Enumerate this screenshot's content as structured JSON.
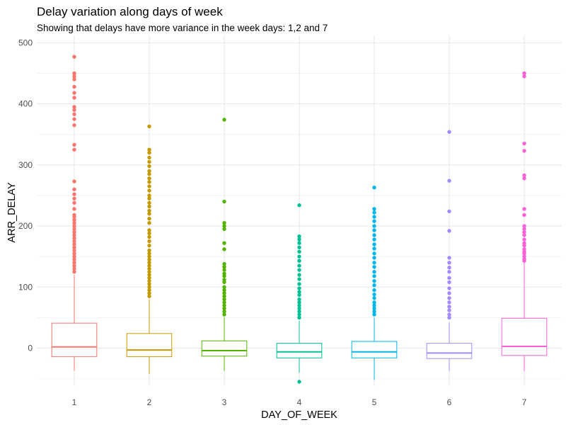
{
  "chart_data": {
    "type": "boxplot",
    "title": "Delay variation along days of week",
    "subtitle": "Showing that delays have more variance in the week days: 1,2 and 7",
    "xlabel": "DAY_OF_WEEK",
    "ylabel": "ARR_DELAY",
    "ylim": [
      -62,
      512
    ],
    "yticks": [
      0,
      100,
      200,
      300,
      400,
      500
    ],
    "grid": true,
    "categories": [
      "1",
      "2",
      "3",
      "4",
      "5",
      "6",
      "7"
    ],
    "series": [
      {
        "category": "1",
        "color": "#F8766D",
        "whisker_low": -37,
        "q1": -14,
        "median": 2,
        "q3": 41,
        "whisker_high": 120,
        "outliers": [
          477,
          450,
          445,
          440,
          428,
          418,
          410,
          395,
          390,
          383,
          375,
          365,
          333,
          325,
          273,
          260,
          252,
          245,
          238,
          228,
          218,
          215,
          210,
          205,
          200,
          195,
          190,
          185,
          180,
          175,
          170,
          165,
          160,
          155,
          150,
          145,
          140,
          135,
          130,
          125
        ]
      },
      {
        "category": "2",
        "color": "#C49A00",
        "whisker_low": -42,
        "q1": -14,
        "median": -3,
        "q3": 24,
        "whisker_high": 80,
        "outliers": [
          363,
          325,
          320,
          312,
          305,
          298,
          290,
          285,
          278,
          272,
          265,
          258,
          250,
          245,
          238,
          232,
          225,
          220,
          212,
          205,
          193,
          188,
          182,
          175,
          168,
          160,
          155,
          150,
          145,
          140,
          135,
          130,
          125,
          120,
          115,
          110,
          105,
          100,
          95,
          90,
          85
        ]
      },
      {
        "category": "3",
        "color": "#53B400",
        "whisker_low": -37,
        "q1": -13,
        "median": -4,
        "q3": 12,
        "whisker_high": 50,
        "outliers": [
          374,
          240,
          205,
          200,
          195,
          172,
          162,
          138,
          133,
          128,
          122,
          118,
          112,
          108,
          100,
          95,
          90,
          85,
          80,
          75,
          70,
          65,
          60,
          55
        ]
      },
      {
        "category": "4",
        "color": "#00C094",
        "whisker_low": -40,
        "q1": -16,
        "median": -6,
        "q3": 8,
        "whisker_high": 45,
        "outliers": [
          234,
          183,
          178,
          172,
          165,
          158,
          150,
          143,
          135,
          128,
          120,
          113,
          105,
          98,
          92,
          87,
          80,
          75,
          70,
          65,
          60,
          55,
          50,
          -55
        ]
      },
      {
        "category": "5",
        "color": "#00B6EB",
        "whisker_low": -52,
        "q1": -16,
        "median": -6,
        "q3": 11,
        "whisker_high": 50,
        "outliers": [
          263,
          228,
          222,
          215,
          208,
          200,
          193,
          185,
          178,
          170,
          163,
          155,
          148,
          140,
          133,
          125,
          118,
          110,
          103,
          95,
          88,
          82,
          75,
          70,
          65,
          60,
          55
        ]
      },
      {
        "category": "6",
        "color": "#A58AFF",
        "whisker_low": -38,
        "q1": -17,
        "median": -8,
        "q3": 8,
        "whisker_high": 42,
        "outliers": [
          354,
          274,
          224,
          192,
          148,
          140,
          132,
          125,
          115,
          108,
          98,
          90,
          82,
          75,
          68,
          62,
          55,
          50
        ]
      },
      {
        "category": "7",
        "color": "#FB61D7",
        "whisker_low": -38,
        "q1": -12,
        "median": 3,
        "q3": 49,
        "whisker_high": 140,
        "outliers": [
          450,
          445,
          335,
          323,
          283,
          278,
          228,
          218,
          200,
          195,
          190,
          185,
          178,
          172,
          168,
          162,
          158,
          155,
          150,
          146,
          143
        ]
      }
    ]
  }
}
